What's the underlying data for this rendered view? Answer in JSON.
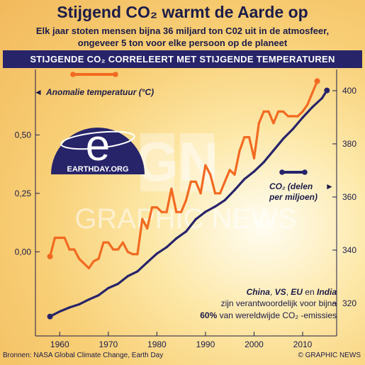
{
  "header": {
    "title": "Stijgend CO₂ warmt de Aarde op",
    "subtitle_line1": "Elk jaar stoten mensen bijna 36 miljard ton C02 uit in de atmosfeer,",
    "subtitle_line2": "ongeveer 5 ton voor elke persoon op de planeet",
    "banner": "STIJGENDE CO₂ CORRELEERT MET STIJGENDE TEMPERATUREN"
  },
  "logo": {
    "text": "EARTHDAY.ORG",
    "letter": "e"
  },
  "watermark": {
    "text": "GRAPHIC NEWS",
    "mark": "GN"
  },
  "annotation": {
    "country1": "China",
    "country2": "VS",
    "country3": "EU",
    "word_en": "en",
    "country4": "India",
    "line2": "zijn verantwoordelijk voor bijna",
    "pct": "60%",
    "line3": "van wereldwijde CO₂ -emissies"
  },
  "footer": {
    "source": "Bronnen: NASA Global Climate Change, Earth Day",
    "credit": "© GRAPHIC NEWS"
  },
  "colors": {
    "temperature": "#f26a21",
    "co2": "#27246a",
    "banner": "#27246a",
    "logo": "#27246a"
  },
  "chart_data": {
    "type": "line",
    "x_ticks": [
      "1960",
      "1970",
      "1980",
      "1990",
      "2000",
      "2010"
    ],
    "xlim": [
      1955,
      2017
    ],
    "y_left": {
      "label": "Anomalie temperatuur (°C)",
      "ticks": [
        "0,50",
        "0,25",
        "0,00"
      ],
      "ylim": [
        -0.36,
        0.78
      ]
    },
    "y_right": {
      "label_line1": "CO₂ (delen",
      "label_line2": "per miljoen)",
      "ticks": [
        "400",
        "380",
        "360",
        "340",
        "320"
      ],
      "ylim": [
        307.7,
        408
      ]
    },
    "series": [
      {
        "name": "Anomalie temperatuur (°C)",
        "axis": "left",
        "x": [
          1958,
          1959,
          1960,
          1961,
          1962,
          1963,
          1964,
          1965,
          1966,
          1967,
          1968,
          1969,
          1970,
          1971,
          1972,
          1973,
          1974,
          1975,
          1976,
          1977,
          1978,
          1979,
          1980,
          1981,
          1982,
          1983,
          1984,
          1985,
          1986,
          1987,
          1988,
          1989,
          1990,
          1991,
          1992,
          1993,
          1994,
          1995,
          1996,
          1997,
          1998,
          1999,
          2000,
          2001,
          2002,
          2003,
          2004,
          2005,
          2006,
          2007,
          2008,
          2009,
          2010,
          2011,
          2012,
          2013
        ],
        "values": [
          -0.02,
          0.06,
          0.06,
          0.06,
          0.01,
          0.01,
          -0.03,
          -0.05,
          -0.07,
          -0.04,
          -0.03,
          0.04,
          0.04,
          0.01,
          0.01,
          0.04,
          0.0,
          -0.01,
          -0.01,
          0.14,
          0.1,
          0.19,
          0.19,
          0.17,
          0.17,
          0.27,
          0.17,
          0.17,
          0.22,
          0.3,
          0.3,
          0.25,
          0.37,
          0.33,
          0.25,
          0.25,
          0.3,
          0.35,
          0.33,
          0.43,
          0.49,
          0.49,
          0.4,
          0.55,
          0.6,
          0.6,
          0.55,
          0.6,
          0.6,
          0.58,
          0.58,
          0.58,
          0.6,
          0.63,
          0.68,
          0.73
        ]
      },
      {
        "name": "CO₂ (delen per miljoen)",
        "axis": "right",
        "x": [
          1958,
          1960,
          1962,
          1964,
          1966,
          1968,
          1970,
          1972,
          1974,
          1976,
          1978,
          1980,
          1982,
          1984,
          1986,
          1988,
          1990,
          1992,
          1994,
          1996,
          1998,
          2000,
          2002,
          2004,
          2006,
          2008,
          2010,
          2012,
          2014,
          2015
        ],
        "values": [
          315,
          316.9,
          318.4,
          319.6,
          321.4,
          323,
          325.7,
          327.3,
          330.2,
          332,
          335.4,
          338.7,
          341.1,
          344.4,
          347,
          351.6,
          354.4,
          356.4,
          358.8,
          362.6,
          366.7,
          369.6,
          373.1,
          377.5,
          381.9,
          385.6,
          389.9,
          393.8,
          397.2,
          400.1
        ]
      }
    ]
  }
}
